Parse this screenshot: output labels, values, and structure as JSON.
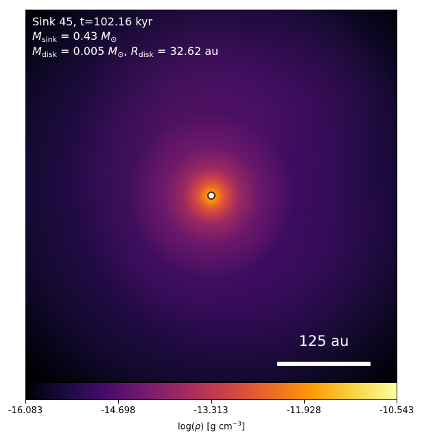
{
  "chart_data": {
    "type": "heatmap",
    "colormap": "inferno",
    "annotations": {
      "line1": "Sink 45, t=102.16 kyr",
      "msink_label": "M",
      "msink_sub": "sink",
      "msink_value": " = 0.43 ",
      "msun": "M",
      "msun_sub": "⊙",
      "mdisk_label": "M",
      "mdisk_sub": "disk",
      "mdisk_value": " = 0.005 ",
      "rdisk_label": "R",
      "rdisk_sub": "disk",
      "rdisk_value": " = 32.62 au",
      "scale_bar": "125 au"
    },
    "colorbar": {
      "label": "log(ρ) [g cm⁻³]",
      "range": [
        -16.083,
        -10.543
      ],
      "ticks": [
        "-16.083",
        "-14.698",
        "-13.313",
        "-11.928",
        "-10.543"
      ]
    },
    "sink_marker": {
      "color_fill": "#ffffff",
      "color_edge": "#3a2a1a"
    }
  }
}
